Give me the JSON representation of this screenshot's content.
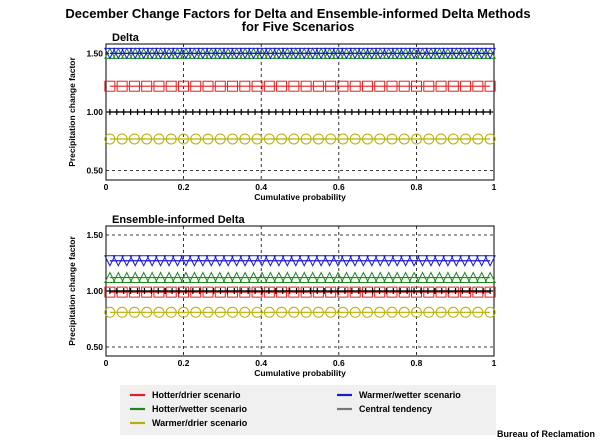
{
  "figure": {
    "title_line1": "December Change Factors for Delta and Ensemble-informed Delta Methods",
    "title_line2": "for Five Scenarios",
    "credit": "Bureau of Reclamation"
  },
  "chart_data": [
    {
      "type": "line",
      "title": "Delta",
      "xlabel": "Cumulative probability",
      "ylabel": "Precipitation change factor",
      "xlim": [
        0,
        1
      ],
      "ylim": [
        0.42,
        1.58
      ],
      "x_ticks": [
        0,
        0.2,
        0.4,
        0.6,
        0.8,
        1
      ],
      "x_tick_labels": [
        "0",
        "0.2",
        "0.4",
        "0.6",
        "0.8",
        "1"
      ],
      "y_ticks": [
        0.5,
        1.0,
        1.5
      ],
      "y_tick_labels": [
        "0.50",
        "1.00",
        "1.50"
      ],
      "grid": true,
      "x": [
        0.01,
        0.99
      ],
      "series": [
        {
          "name": "Hotter/drier scenario",
          "color": "#e02020",
          "marker": "square",
          "values": [
            1.22,
            1.22
          ]
        },
        {
          "name": "Hotter/wetter scenario",
          "color": "#1a8a1a",
          "marker": "triangle-up",
          "values": [
            1.5,
            1.5
          ]
        },
        {
          "name": "Warmer/drier scenario",
          "color": "#b8b000",
          "marker": "circle",
          "values": [
            0.77,
            0.77
          ]
        },
        {
          "name": "Warmer/wetter scenario",
          "color": "#1a1ad0",
          "marker": "triangle-down",
          "values": [
            1.5,
            1.5
          ]
        },
        {
          "name": "Central tendency",
          "color": "#000000",
          "marker": "plus",
          "values": [
            1.0,
            1.0
          ]
        }
      ]
    },
    {
      "type": "line",
      "title": "Ensemble-informed Delta",
      "xlabel": "Cumulative probability",
      "ylabel": "Precipitation change factor",
      "xlim": [
        0,
        1
      ],
      "ylim": [
        0.42,
        1.58
      ],
      "x_ticks": [
        0,
        0.2,
        0.4,
        0.6,
        0.8,
        1
      ],
      "x_tick_labels": [
        "0",
        "0.2",
        "0.4",
        "0.6",
        "0.8",
        "1"
      ],
      "y_ticks": [
        0.5,
        1.0,
        1.5
      ],
      "y_tick_labels": [
        "0.50",
        "1.00",
        "1.50"
      ],
      "grid": true,
      "x": [
        0.01,
        0.99
      ],
      "series": [
        {
          "name": "Hotter/drier scenario",
          "color": "#e02020",
          "marker": "square",
          "values": [
            0.99,
            0.99
          ]
        },
        {
          "name": "Hotter/wetter scenario",
          "color": "#1a8a1a",
          "marker": "triangle-up",
          "values": [
            1.12,
            1.12
          ]
        },
        {
          "name": "Warmer/drier scenario",
          "color": "#b8b000",
          "marker": "circle",
          "values": [
            0.81,
            0.81
          ]
        },
        {
          "name": "Warmer/wetter scenario",
          "color": "#1a1ad0",
          "marker": "triangle-down",
          "values": [
            1.27,
            1.27
          ]
        },
        {
          "name": "Central tendency",
          "color": "#000000",
          "marker": "plus",
          "values": [
            1.0,
            1.0
          ]
        }
      ]
    }
  ],
  "legend": {
    "items": [
      {
        "label": "Hotter/drier scenario",
        "color": "#e02020"
      },
      {
        "label": "Hotter/wetter scenario",
        "color": "#1a8a1a"
      },
      {
        "label": "Warmer/drier scenario",
        "color": "#b8b000"
      },
      {
        "label": "Warmer/wetter scenario",
        "color": "#1a1ad0"
      },
      {
        "label": "Central tendency",
        "color": "#777777"
      }
    ]
  }
}
